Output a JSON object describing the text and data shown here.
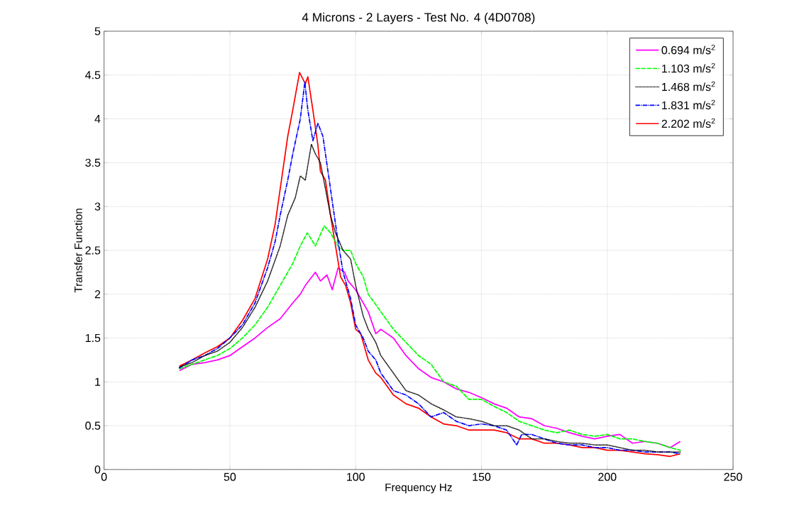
{
  "chart_data": {
    "type": "line",
    "title": "4 Microns - 2 Layers - Test No. 4 (4D0708)",
    "xlabel": "Frequency Hz",
    "ylabel": "Transfer Function",
    "xlim": [
      0,
      250
    ],
    "ylim": [
      0,
      5
    ],
    "xticks": [
      0,
      50,
      100,
      150,
      200,
      250
    ],
    "yticks": [
      0,
      0.5,
      1,
      1.5,
      2,
      2.5,
      3,
      3.5,
      4,
      4.5,
      5
    ],
    "grid": true,
    "legend": "top right",
    "series": [
      {
        "name": "0.694 m/s$^{2}$",
        "color": "#ff00ff",
        "line_style": "solid",
        "x": [
          30,
          35,
          40,
          45,
          50,
          55,
          60,
          65,
          70,
          75,
          78,
          80,
          84,
          86,
          88.6,
          90.7,
          93,
          95.6,
          97,
          100,
          105,
          108,
          110,
          115,
          120,
          125,
          130,
          135,
          140,
          145,
          150,
          155,
          160,
          165,
          170,
          175,
          180,
          185,
          190,
          195,
          200,
          205,
          210,
          215,
          220,
          225,
          229
        ],
        "values": [
          1.13,
          1.2,
          1.22,
          1.25,
          1.3,
          1.4,
          1.5,
          1.62,
          1.72,
          1.9,
          2.0,
          2.1,
          2.25,
          2.15,
          2.22,
          2.05,
          2.3,
          2.25,
          2.15,
          2.05,
          1.8,
          1.55,
          1.6,
          1.5,
          1.3,
          1.15,
          1.05,
          1.0,
          0.92,
          0.88,
          0.82,
          0.75,
          0.7,
          0.6,
          0.58,
          0.5,
          0.47,
          0.42,
          0.38,
          0.35,
          0.38,
          0.4,
          0.3,
          0.32,
          0.3,
          0.25,
          0.32
        ]
      },
      {
        "name": "1.103 m/s$^{2}$",
        "color": "#00ff00",
        "line_style": "dashed",
        "x": [
          30,
          35,
          40,
          45,
          50,
          55,
          60,
          65,
          70,
          75,
          78,
          80.8,
          84,
          87.5,
          90,
          93,
          95,
          98,
          100,
          103,
          105,
          110,
          115,
          120,
          125,
          130,
          135,
          140,
          145,
          150,
          155,
          160,
          165,
          170,
          175,
          180,
          185,
          190,
          195,
          200,
          205,
          210,
          215,
          220,
          225,
          229
        ],
        "values": [
          1.15,
          1.2,
          1.25,
          1.3,
          1.38,
          1.5,
          1.65,
          1.85,
          2.1,
          2.35,
          2.55,
          2.7,
          2.55,
          2.78,
          2.7,
          2.55,
          2.5,
          2.5,
          2.35,
          2.2,
          2.0,
          1.8,
          1.6,
          1.45,
          1.3,
          1.2,
          1.0,
          0.95,
          0.8,
          0.8,
          0.72,
          0.65,
          0.55,
          0.5,
          0.45,
          0.42,
          0.45,
          0.4,
          0.38,
          0.4,
          0.35,
          0.35,
          0.32,
          0.3,
          0.25,
          0.22
        ]
      },
      {
        "name": "1.468 m/s$^{2}$",
        "color": "#000000",
        "line_style": "dotted",
        "x": [
          30,
          35,
          40,
          45,
          50,
          55,
          60,
          65,
          70,
          73,
          76,
          78,
          80,
          82.4,
          84,
          86,
          88,
          90,
          92,
          95,
          98,
          100,
          103,
          105,
          108,
          110,
          115,
          120,
          125,
          130,
          135,
          140,
          145,
          150,
          155,
          160,
          165,
          170,
          175,
          180,
          185,
          190,
          195,
          200,
          205,
          210,
          215,
          220,
          225,
          229
        ],
        "values": [
          1.17,
          1.22,
          1.3,
          1.35,
          1.45,
          1.62,
          1.85,
          2.15,
          2.55,
          2.9,
          3.1,
          3.35,
          3.3,
          3.71,
          3.6,
          3.5,
          3.2,
          2.9,
          2.7,
          2.5,
          2.4,
          2.1,
          1.75,
          1.6,
          1.45,
          1.3,
          1.1,
          0.9,
          0.85,
          0.75,
          0.68,
          0.6,
          0.58,
          0.55,
          0.5,
          0.5,
          0.45,
          0.35,
          0.35,
          0.32,
          0.3,
          0.3,
          0.28,
          0.28,
          0.25,
          0.22,
          0.22,
          0.2,
          0.2,
          0.2
        ]
      },
      {
        "name": "1.831 m/s$^{2}$",
        "color": "#0000ff",
        "line_style": "dashdot",
        "x": [
          30,
          35,
          40,
          45,
          50,
          55,
          60,
          65,
          68,
          70,
          73,
          75,
          78,
          79.8,
          81,
          83,
          85,
          87,
          89,
          91,
          93,
          95,
          98,
          100,
          103,
          105,
          108,
          110,
          115,
          120,
          125,
          130,
          135,
          140,
          145,
          150,
          155,
          160,
          164,
          166,
          170,
          175,
          180,
          185,
          190,
          195,
          200,
          205,
          210,
          215,
          220,
          225,
          229
        ],
        "values": [
          1.16,
          1.25,
          1.3,
          1.38,
          1.5,
          1.65,
          1.9,
          2.3,
          2.6,
          2.9,
          3.3,
          3.6,
          4.0,
          4.42,
          4.1,
          3.75,
          3.95,
          3.8,
          3.4,
          3.0,
          2.6,
          2.25,
          1.95,
          1.65,
          1.5,
          1.35,
          1.25,
          1.1,
          0.9,
          0.85,
          0.75,
          0.6,
          0.65,
          0.55,
          0.5,
          0.52,
          0.5,
          0.45,
          0.28,
          0.4,
          0.4,
          0.35,
          0.3,
          0.28,
          0.28,
          0.25,
          0.25,
          0.22,
          0.22,
          0.2,
          0.2,
          0.2,
          0.18
        ]
      },
      {
        "name": "2.202 m/s$^{2}$",
        "color": "#ff0000",
        "line_style": "solid",
        "x": [
          30,
          35,
          40,
          45,
          50,
          55,
          60,
          65,
          68,
          70,
          73,
          75,
          77.7,
          80,
          81,
          83,
          85,
          86,
          88,
          90,
          92,
          94,
          96,
          98,
          100,
          102,
          105,
          108,
          110,
          115,
          120,
          125,
          130,
          135,
          140,
          145,
          150,
          155,
          160,
          165,
          170,
          175,
          180,
          185,
          190,
          195,
          200,
          205,
          210,
          215,
          220,
          225,
          229
        ],
        "values": [
          1.18,
          1.25,
          1.33,
          1.4,
          1.5,
          1.7,
          1.95,
          2.4,
          2.8,
          3.2,
          3.8,
          4.1,
          4.53,
          4.4,
          4.48,
          4.1,
          3.7,
          3.4,
          3.3,
          2.9,
          2.55,
          2.2,
          2.1,
          1.9,
          1.6,
          1.55,
          1.25,
          1.1,
          1.05,
          0.85,
          0.75,
          0.7,
          0.6,
          0.52,
          0.5,
          0.45,
          0.45,
          0.45,
          0.42,
          0.35,
          0.35,
          0.3,
          0.3,
          0.28,
          0.25,
          0.25,
          0.22,
          0.22,
          0.2,
          0.18,
          0.17,
          0.15,
          0.18
        ]
      }
    ]
  }
}
